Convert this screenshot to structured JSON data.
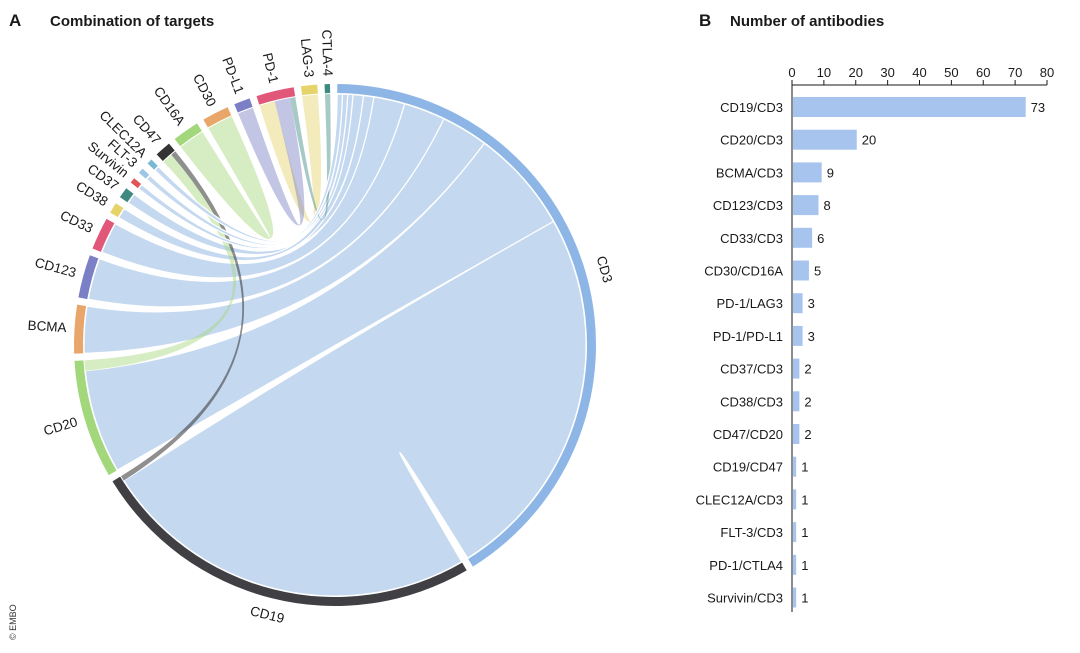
{
  "copyright": "© EMBO",
  "panel_a": {
    "letter": "A",
    "title": "Combination of targets"
  },
  "panel_b": {
    "letter": "B",
    "title": "Number of antibodies"
  },
  "chart_data": [
    {
      "type": "chord",
      "title": "Combination of targets",
      "nodes": [
        {
          "name": "CD3",
          "color": "#8db6e6"
        },
        {
          "name": "CD19",
          "color": "#404044"
        },
        {
          "name": "CD20",
          "color": "#a3d77b"
        },
        {
          "name": "BCMA",
          "color": "#e8a66a"
        },
        {
          "name": "CD123",
          "color": "#7b7fc6"
        },
        {
          "name": "CD33",
          "color": "#e0577a"
        },
        {
          "name": "CD38",
          "color": "#e6d36a"
        },
        {
          "name": "CD37",
          "color": "#3e8a80"
        },
        {
          "name": "Survivin",
          "color": "#e05555"
        },
        {
          "name": "FLT-3",
          "color": "#9cc6e6"
        },
        {
          "name": "CLEC12A",
          "color": "#7ab8d6"
        },
        {
          "name": "CD47",
          "color": "#333333"
        },
        {
          "name": "CD16A",
          "color": "#a3d77b"
        },
        {
          "name": "CD30",
          "color": "#e8a66a"
        },
        {
          "name": "PD-L1",
          "color": "#7b7fc6"
        },
        {
          "name": "PD-1",
          "color": "#e0577a"
        },
        {
          "name": "LAG-3",
          "color": "#e6d36a"
        },
        {
          "name": "CTLA-4",
          "color": "#3e8a80"
        }
      ],
      "links": [
        {
          "source": "CD19",
          "target": "CD3",
          "value": 73
        },
        {
          "source": "CD20",
          "target": "CD3",
          "value": 20
        },
        {
          "source": "BCMA",
          "target": "CD3",
          "value": 9
        },
        {
          "source": "CD123",
          "target": "CD3",
          "value": 8
        },
        {
          "source": "CD33",
          "target": "CD3",
          "value": 6
        },
        {
          "source": "CD30",
          "target": "CD16A",
          "value": 5
        },
        {
          "source": "PD-1",
          "target": "LAG-3",
          "value": 3
        },
        {
          "source": "PD-1",
          "target": "PD-L1",
          "value": 3
        },
        {
          "source": "CD37",
          "target": "CD3",
          "value": 2
        },
        {
          "source": "CD38",
          "target": "CD3",
          "value": 2
        },
        {
          "source": "CD47",
          "target": "CD20",
          "value": 2
        },
        {
          "source": "CD19",
          "target": "CD47",
          "value": 1
        },
        {
          "source": "CLEC12A",
          "target": "CD3",
          "value": 1
        },
        {
          "source": "FLT-3",
          "target": "CD3",
          "value": 1
        },
        {
          "source": "PD-1",
          "target": "CTLA-4",
          "value": 1
        },
        {
          "source": "Survivin",
          "target": "CD3",
          "value": 1
        }
      ]
    },
    {
      "type": "bar",
      "orientation": "horizontal",
      "title": "Number of antibodies",
      "categories": [
        "CD19/CD3",
        "CD20/CD3",
        "BCMA/CD3",
        "CD123/CD3",
        "CD33/CD3",
        "CD30/CD16A",
        "PD-1/LAG3",
        "PD-1/PD-L1",
        "CD37/CD3",
        "CD38/CD3",
        "CD47/CD20",
        "CD19/CD47",
        "CLEC12A/CD3",
        "FLT-3/CD3",
        "PD-1/CTLA4",
        "Survivin/CD3"
      ],
      "values": [
        73,
        20,
        9,
        8,
        6,
        5,
        3,
        3,
        2,
        2,
        2,
        1,
        1,
        1,
        1,
        1
      ],
      "xlim": [
        0,
        80
      ],
      "xticks": [
        0,
        10,
        20,
        30,
        40,
        50,
        60,
        70,
        80
      ],
      "axis_position": "top",
      "bar_color": "#a7c4ef"
    }
  ]
}
